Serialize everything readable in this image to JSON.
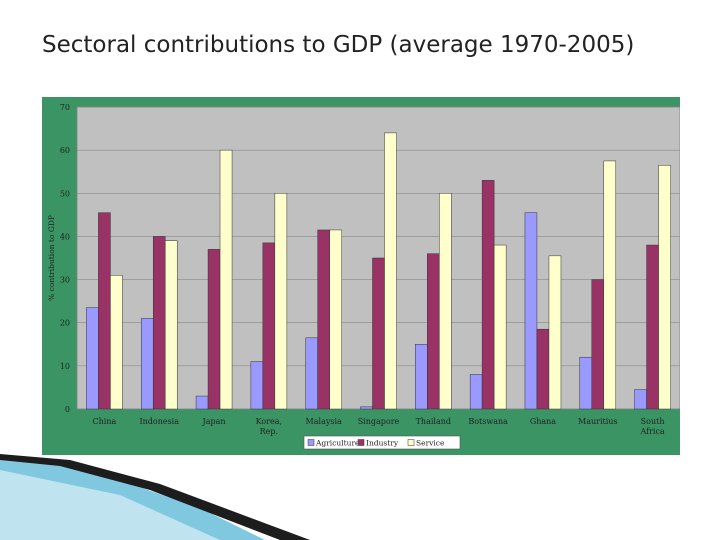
{
  "slide": {
    "title": "Sectoral contributions to GDP (average 1970-2005)"
  },
  "colors": {
    "frame": "#3a9464",
    "plot_bg": "#c0c0c0",
    "agriculture": "#9999ff",
    "industry": "#993366",
    "service": "#ffffcc"
  },
  "chart_data": {
    "type": "bar",
    "title": "",
    "xlabel": "",
    "ylabel": "% contribution to GDP",
    "ylim": [
      0,
      70
    ],
    "yticks": [
      0,
      10,
      20,
      30,
      40,
      50,
      60,
      70
    ],
    "grid": true,
    "legend_position": "bottom",
    "categories": [
      [
        "China"
      ],
      [
        "Indonesia"
      ],
      [
        "Japan"
      ],
      [
        "Korea,",
        "Rep."
      ],
      [
        "Malaysia"
      ],
      [
        "Singapore"
      ],
      [
        "Thailand"
      ],
      [
        "Botswana"
      ],
      [
        "Ghana"
      ],
      [
        "Mauritius"
      ],
      [
        "South",
        "Africa"
      ]
    ],
    "series": [
      {
        "name": "Agriculture",
        "color": "#9999ff",
        "values": [
          23.5,
          21,
          3,
          11,
          16.5,
          0.5,
          15,
          8,
          45.5,
          12,
          4.5
        ]
      },
      {
        "name": "Industry",
        "color": "#993366",
        "values": [
          45.5,
          40,
          37,
          38.5,
          41.5,
          35,
          36,
          53,
          18.5,
          30,
          38
        ]
      },
      {
        "name": "Service",
        "color": "#ffffcc",
        "values": [
          31,
          39,
          60,
          50,
          41.5,
          64,
          50,
          38,
          35.5,
          57.5,
          56.5
        ]
      }
    ]
  }
}
